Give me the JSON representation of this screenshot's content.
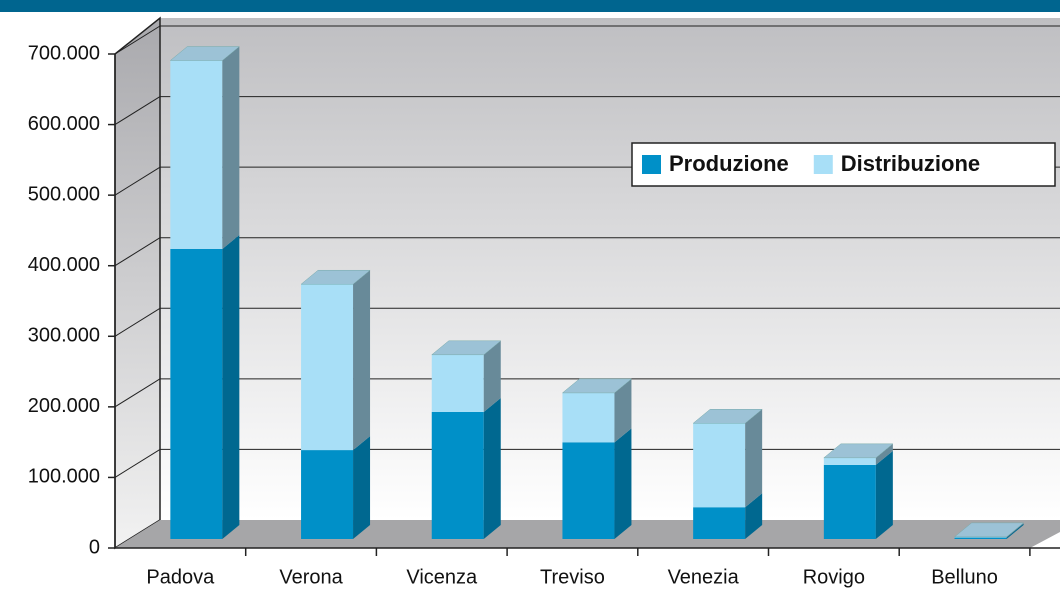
{
  "chart_data": {
    "type": "bar3d-stacked",
    "categories": [
      "Padova",
      "Verona",
      "Vicenza",
      "Treviso",
      "Venezia",
      "Rovigo",
      "Belluno"
    ],
    "series": [
      {
        "name": "Produzione",
        "color": "#0090c8",
        "values": [
          411000,
          126000,
          180000,
          137000,
          45000,
          105000,
          2000
        ]
      },
      {
        "name": "Distribuzione",
        "color": "#a8dff7",
        "values": [
          267000,
          235000,
          81000,
          70000,
          119000,
          10000,
          1000
        ]
      }
    ],
    "ylim": [
      0,
      700000
    ],
    "yticks": [
      0,
      {
        "value": 100000,
        "label": "100.000"
      },
      {
        "value": 200000,
        "label": "200.000"
      },
      {
        "value": 300000,
        "label": "300.000"
      },
      {
        "value": 400000,
        "label": "400.000"
      },
      {
        "value": 500000,
        "label": "500.000"
      },
      {
        "value": 600000,
        "label": "600.000"
      },
      {
        "value": 700000,
        "label": "700.000"
      }
    ],
    "grid": true,
    "legend": "top-right"
  }
}
